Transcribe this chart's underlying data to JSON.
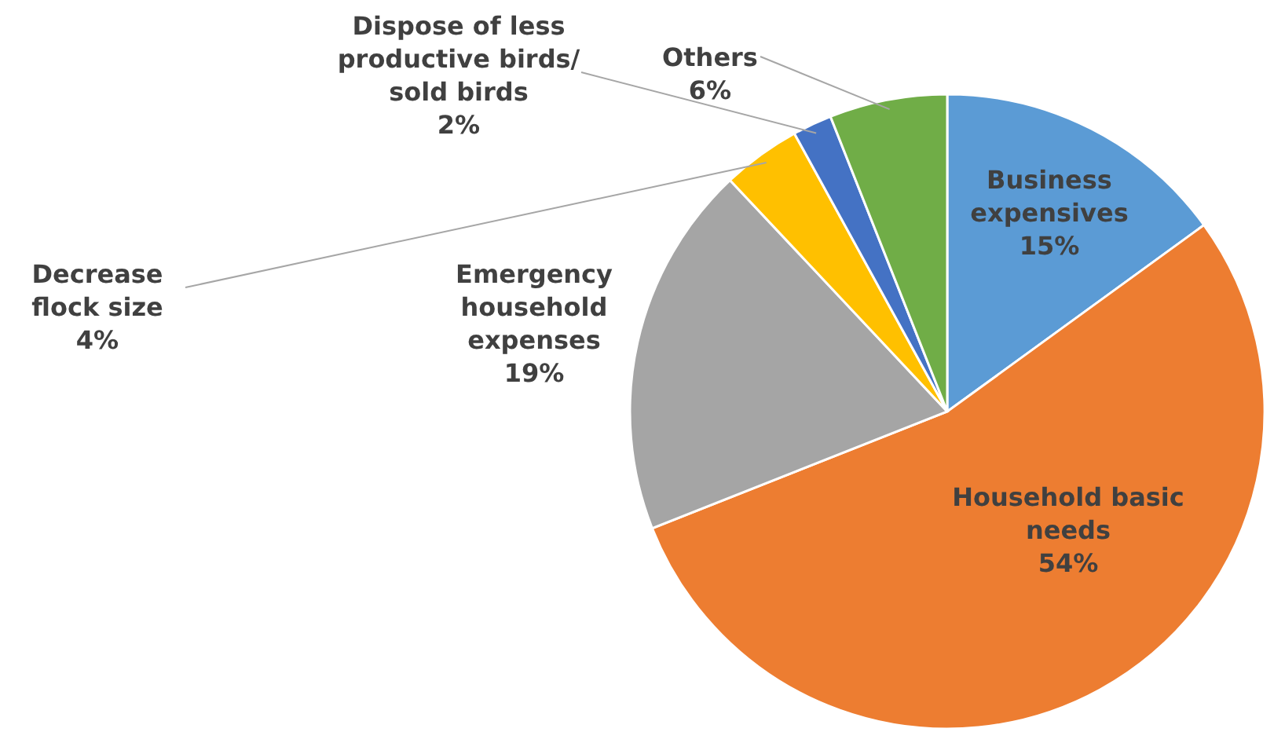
{
  "chart_data": {
    "type": "pie",
    "categories": [
      "Business expensives",
      "Household basic needs",
      "Emergency household expenses",
      "Decrease flock size",
      "Dispose of less productive birds/ sold birds",
      "Others"
    ],
    "values": [
      15,
      54,
      19,
      4,
      2,
      6
    ],
    "value_labels": [
      "15%",
      "54%",
      "19%",
      "4%",
      "2%",
      "6%"
    ],
    "colors": [
      "#5b9bd5",
      "#ed7d31",
      "#a5a5a5",
      "#ffc000",
      "#4472c4",
      "#70ad47"
    ]
  }
}
